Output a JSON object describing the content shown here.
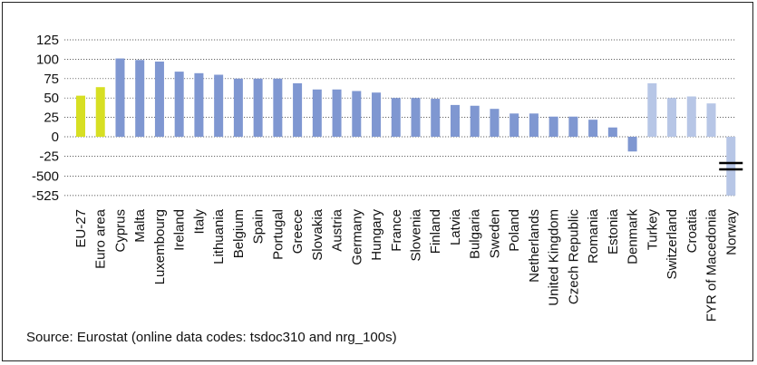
{
  "chart_data": {
    "type": "bar",
    "title": "",
    "xlabel": "",
    "ylabel": "",
    "y_ticks": [
      "125",
      "100",
      "75",
      "50",
      "25",
      "0",
      "-25",
      "-500",
      "-525"
    ],
    "y_tick_values": [
      125,
      100,
      75,
      50,
      25,
      0,
      -25,
      -500,
      -525
    ],
    "axis_break": {
      "from": -25,
      "to": -500
    },
    "grid": true,
    "legend": "none",
    "colors": {
      "aggregate": "#D7DF23",
      "eu_member": "#7F97D1",
      "non_eu": "#B7C6E6",
      "grid": "#333333",
      "break_marker": "#000000"
    },
    "categories": [
      "EU-27",
      "Euro area",
      "Cyprus",
      "Malta",
      "Luxembourg",
      "Ireland",
      "Italy",
      "Lithuania",
      "Belgium",
      "Spain",
      "Portugal",
      "Greece",
      "Slovakia",
      "Austria",
      "Germany",
      "Hungary",
      "France",
      "Slovenia",
      "Finland",
      "Latvia",
      "Bulgaria",
      "Sweden",
      "Poland",
      "Netherlands",
      "United Kingdom",
      "Czech Republic",
      "Romania",
      "Estonia",
      "Denmark",
      "Turkey",
      "Switzerland",
      "Croatia",
      "FYR of Macedonia",
      "Norway"
    ],
    "values": [
      53,
      64,
      101,
      99,
      97,
      84,
      82,
      80,
      75,
      75,
      75,
      69,
      61,
      61,
      59,
      57,
      50,
      50,
      49,
      41,
      40,
      36,
      30,
      30,
      26,
      26,
      22,
      12,
      -19,
      69,
      50,
      52,
      43,
      -525
    ],
    "groups": [
      "aggregate",
      "aggregate",
      "eu_member",
      "eu_member",
      "eu_member",
      "eu_member",
      "eu_member",
      "eu_member",
      "eu_member",
      "eu_member",
      "eu_member",
      "eu_member",
      "eu_member",
      "eu_member",
      "eu_member",
      "eu_member",
      "eu_member",
      "eu_member",
      "eu_member",
      "eu_member",
      "eu_member",
      "eu_member",
      "eu_member",
      "eu_member",
      "eu_member",
      "eu_member",
      "eu_member",
      "eu_member",
      "eu_member",
      "non_eu",
      "non_eu",
      "non_eu",
      "non_eu",
      "non_eu"
    ]
  },
  "source_note": "Source: Eurostat (online data codes: tsdoc310 and nrg_100s)"
}
